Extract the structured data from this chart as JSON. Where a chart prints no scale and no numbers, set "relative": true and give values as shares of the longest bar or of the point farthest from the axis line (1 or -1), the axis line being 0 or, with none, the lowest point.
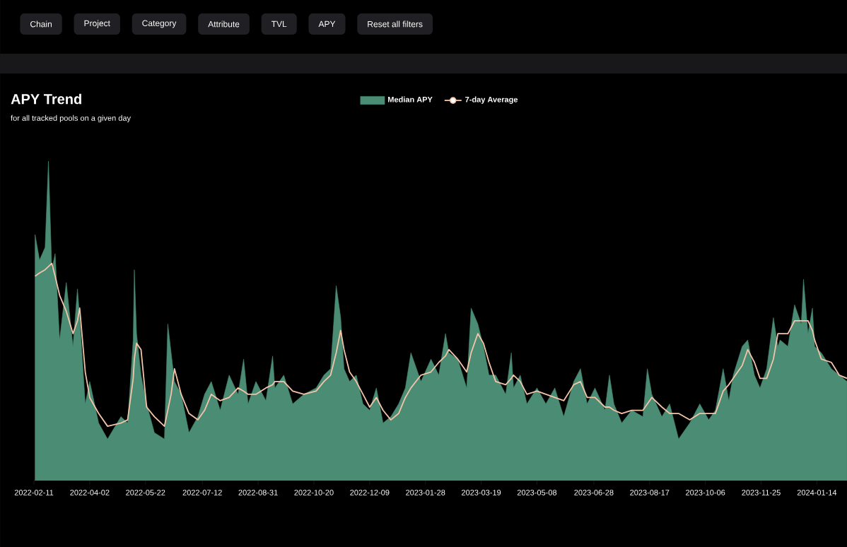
{
  "chart_data": {
    "type": "area",
    "title": "APY Trend",
    "subtitle": "for all tracked pools on a given day",
    "annotations": [
      "Chain",
      "Project",
      "Category",
      "Attribute",
      "TVL",
      "APY",
      "Reset all filters"
    ],
    "relative": true,
    "legend": "top",
    "xlim": [
      "2022-02-11",
      "2024-02-10"
    ],
    "xticks": [
      "2022-02-11",
      "2022-04-02",
      "2022-05-22",
      "2022-07-12",
      "2022-08-31",
      "2022-10-20",
      "2022-12-09",
      "2023-01-28",
      "2023-03-19",
      "2023-05-08",
      "2023-06-28",
      "2023-08-17",
      "2023-10-06",
      "2023-11-25",
      "2024-01-14"
    ],
    "x": [
      "2022-02-12",
      "2022-02-16",
      "2022-02-21",
      "2022-02-24",
      "2022-02-27",
      "2022-03-02",
      "2022-03-06",
      "2022-03-12",
      "2022-03-18",
      "2022-03-22",
      "2022-03-24",
      "2022-03-29",
      "2022-04-02",
      "2022-04-10",
      "2022-04-18",
      "2022-04-30",
      "2022-05-06",
      "2022-05-11",
      "2022-05-12",
      "2022-05-14",
      "2022-05-18",
      "2022-05-23",
      "2022-05-30",
      "2022-06-08",
      "2022-06-11",
      "2022-06-14",
      "2022-06-17",
      "2022-06-23",
      "2022-06-30",
      "2022-07-08",
      "2022-07-14",
      "2022-07-20",
      "2022-07-28",
      "2022-08-05",
      "2022-08-13",
      "2022-08-18",
      "2022-08-22",
      "2022-08-29",
      "2022-09-07",
      "2022-09-13",
      "2022-09-15",
      "2022-09-23",
      "2022-10-01",
      "2022-10-11",
      "2022-10-22",
      "2022-10-29",
      "2022-11-04",
      "2022-11-09",
      "2022-11-13",
      "2022-11-16",
      "2022-11-21",
      "2022-11-27",
      "2022-12-03",
      "2022-12-09",
      "2022-12-15",
      "2022-12-21",
      "2022-12-28",
      "2023-01-04",
      "2023-01-10",
      "2023-01-15",
      "2023-01-24",
      "2023-02-02",
      "2023-02-09",
      "2023-02-15",
      "2023-02-18",
      "2023-02-26",
      "2023-03-06",
      "2023-03-10",
      "2023-03-16",
      "2023-03-21",
      "2023-03-26",
      "2023-04-01",
      "2023-04-10",
      "2023-04-15",
      "2023-04-17",
      "2023-04-23",
      "2023-04-29",
      "2023-05-08",
      "2023-05-16",
      "2023-05-24",
      "2023-06-01",
      "2023-06-10",
      "2023-06-16",
      "2023-06-22",
      "2023-06-29",
      "2023-07-08",
      "2023-07-12",
      "2023-07-16",
      "2023-07-23",
      "2023-08-01",
      "2023-08-11",
      "2023-08-15",
      "2023-08-19",
      "2023-08-28",
      "2023-09-04",
      "2023-09-12",
      "2023-09-22",
      "2023-10-01",
      "2023-10-09",
      "2023-10-15",
      "2023-10-22",
      "2023-10-27",
      "2023-10-31",
      "2023-11-08",
      "2023-11-13",
      "2023-11-19",
      "2023-11-24",
      "2023-11-30",
      "2023-12-06",
      "2023-12-10",
      "2023-12-12",
      "2023-12-19",
      "2023-12-25",
      "2023-12-31",
      "2024-01-02",
      "2024-01-06",
      "2024-01-10",
      "2024-01-12",
      "2024-01-18",
      "2024-01-27",
      "2024-02-03",
      "2024-02-10"
    ],
    "series": [
      {
        "name": "Median APY",
        "color": "#4a8c74",
        "values": [
          0.77,
          0.69,
          0.73,
          1.0,
          0.66,
          0.71,
          0.44,
          0.62,
          0.42,
          0.6,
          0.51,
          0.24,
          0.31,
          0.18,
          0.13,
          0.2,
          0.18,
          0.44,
          0.66,
          0.46,
          0.33,
          0.24,
          0.15,
          0.13,
          0.49,
          0.4,
          0.31,
          0.27,
          0.15,
          0.2,
          0.27,
          0.31,
          0.22,
          0.33,
          0.27,
          0.38,
          0.24,
          0.31,
          0.25,
          0.39,
          0.29,
          0.33,
          0.24,
          0.27,
          0.29,
          0.33,
          0.35,
          0.61,
          0.51,
          0.35,
          0.31,
          0.33,
          0.24,
          0.22,
          0.29,
          0.18,
          0.2,
          0.24,
          0.29,
          0.4,
          0.31,
          0.38,
          0.33,
          0.46,
          0.4,
          0.38,
          0.29,
          0.54,
          0.49,
          0.42,
          0.33,
          0.33,
          0.27,
          0.4,
          0.29,
          0.33,
          0.24,
          0.29,
          0.24,
          0.29,
          0.2,
          0.31,
          0.35,
          0.24,
          0.29,
          0.22,
          0.33,
          0.24,
          0.18,
          0.22,
          0.2,
          0.35,
          0.27,
          0.2,
          0.24,
          0.13,
          0.18,
          0.24,
          0.19,
          0.22,
          0.35,
          0.25,
          0.33,
          0.42,
          0.44,
          0.33,
          0.29,
          0.35,
          0.51,
          0.42,
          0.44,
          0.42,
          0.55,
          0.49,
          0.63,
          0.46,
          0.54,
          0.42,
          0.4,
          0.35,
          0.33,
          0.31
        ]
      },
      {
        "name": "7-day Average",
        "type": "line",
        "color": "#f2c4a8",
        "values": [
          0.64,
          0.65,
          0.66,
          0.67,
          0.68,
          0.64,
          0.58,
          0.53,
          0.46,
          0.5,
          0.54,
          0.34,
          0.26,
          0.21,
          0.17,
          0.18,
          0.19,
          0.32,
          0.38,
          0.43,
          0.41,
          0.23,
          0.2,
          0.17,
          0.22,
          0.27,
          0.35,
          0.27,
          0.21,
          0.19,
          0.22,
          0.27,
          0.25,
          0.26,
          0.29,
          0.28,
          0.27,
          0.27,
          0.29,
          0.3,
          0.31,
          0.31,
          0.28,
          0.27,
          0.28,
          0.31,
          0.33,
          0.4,
          0.47,
          0.41,
          0.34,
          0.31,
          0.27,
          0.23,
          0.26,
          0.22,
          0.19,
          0.21,
          0.26,
          0.29,
          0.33,
          0.34,
          0.37,
          0.39,
          0.41,
          0.38,
          0.34,
          0.4,
          0.46,
          0.43,
          0.37,
          0.31,
          0.3,
          0.32,
          0.33,
          0.31,
          0.27,
          0.28,
          0.27,
          0.26,
          0.25,
          0.3,
          0.31,
          0.26,
          0.26,
          0.23,
          0.23,
          0.22,
          0.21,
          0.22,
          0.22,
          0.24,
          0.26,
          0.23,
          0.21,
          0.21,
          0.19,
          0.21,
          0.21,
          0.21,
          0.28,
          0.3,
          0.32,
          0.36,
          0.41,
          0.37,
          0.32,
          0.32,
          0.38,
          0.46,
          0.46,
          0.46,
          0.5,
          0.5,
          0.5,
          0.5,
          0.47,
          0.44,
          0.38,
          0.37,
          0.33,
          0.32
        ]
      }
    ]
  }
}
